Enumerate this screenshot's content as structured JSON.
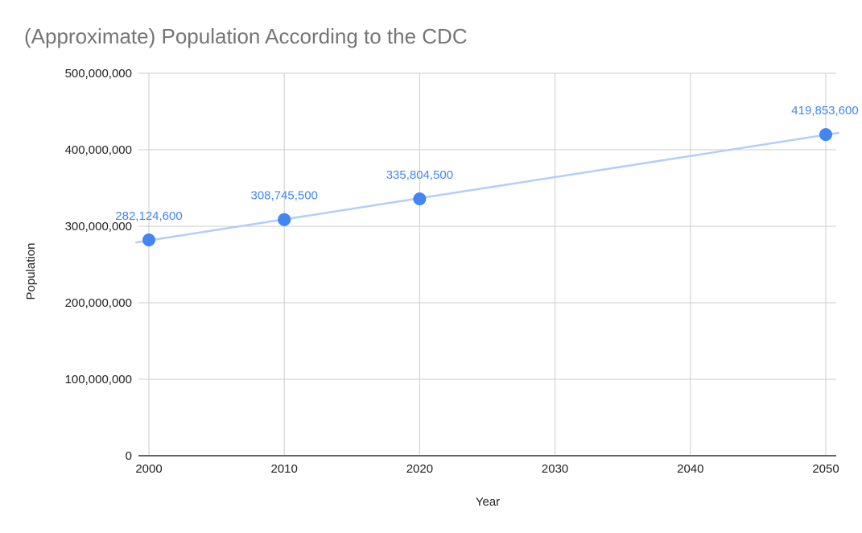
{
  "chart_data": {
    "type": "scatter",
    "title": "(Approximate) Population According to the CDC",
    "xlabel": "Year",
    "ylabel": "Population",
    "xlim": [
      2000,
      2050
    ],
    "ylim": [
      0,
      500000000
    ],
    "x_ticks": [
      2000,
      2010,
      2020,
      2030,
      2040,
      2050
    ],
    "x_tick_labels": [
      "2000",
      "2010",
      "2020",
      "2030",
      "2040",
      "2050"
    ],
    "y_ticks": [
      0,
      100000000,
      200000000,
      300000000,
      400000000,
      500000000
    ],
    "y_tick_labels": [
      "0",
      "100,000,000",
      "200,000,000",
      "300,000,000",
      "400,000,000",
      "500,000,000"
    ],
    "grid": true,
    "trendline": {
      "type": "linear",
      "x_range": [
        1999,
        2051
      ]
    },
    "series": [
      {
        "x": [
          2000,
          2010,
          2020,
          2050
        ],
        "y": [
          282124600,
          308745500,
          335804500,
          419853600
        ],
        "data_labels": [
          "282,124,600",
          "308,745,500",
          "335,804,500",
          "419,853,600"
        ],
        "color": "#4285f4",
        "trendline_color": "#b3cefb"
      }
    ]
  }
}
